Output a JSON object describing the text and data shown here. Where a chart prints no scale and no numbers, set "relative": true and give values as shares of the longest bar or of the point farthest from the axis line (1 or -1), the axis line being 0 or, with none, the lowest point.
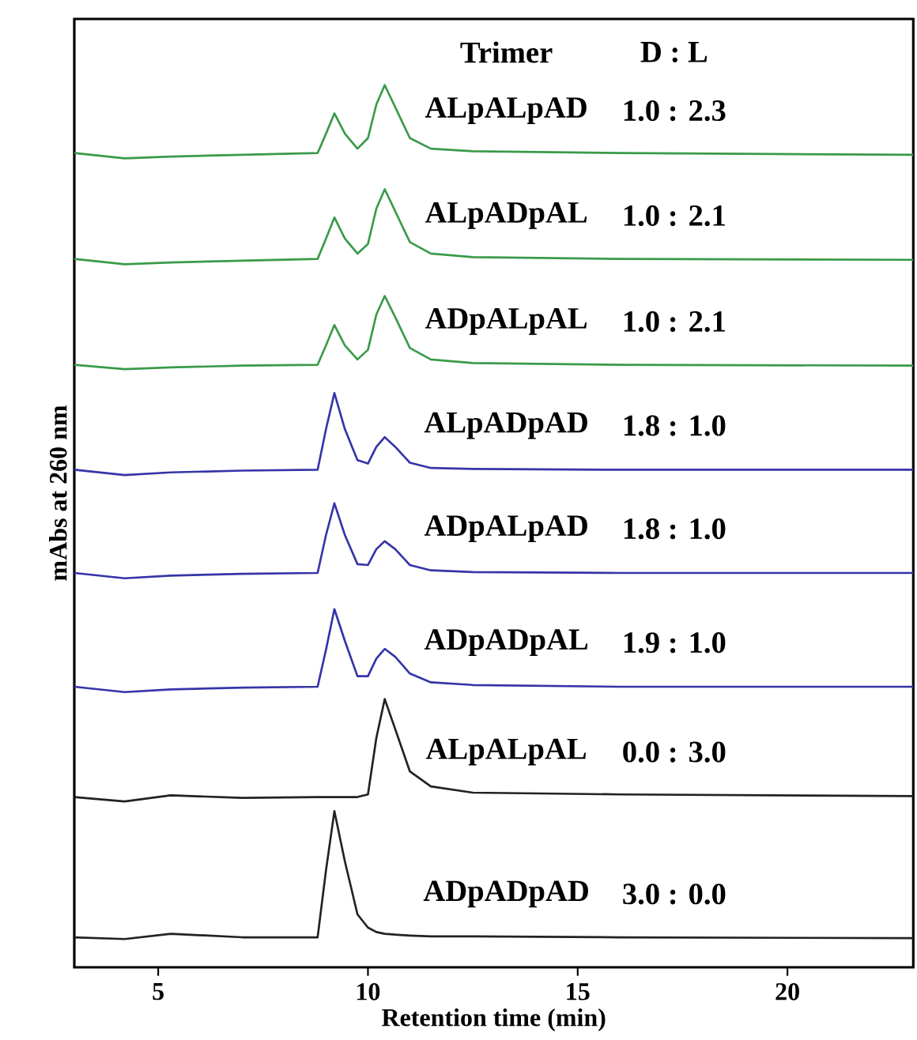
{
  "chart_data": {
    "type": "line",
    "xlabel": "Retention time (min)",
    "ylabel": "mAbs at 260 nm",
    "relative": true,
    "xlim": [
      3,
      23
    ],
    "xticks": [
      5,
      10,
      15,
      20
    ],
    "grid": false,
    "marker": "none",
    "line_style": "solid",
    "x": [
      3,
      4.2,
      5.3,
      7,
      8.8,
      9.0,
      9.2,
      9.45,
      9.75,
      10.0,
      10.2,
      10.4,
      10.65,
      11.0,
      11.5,
      12.5,
      16,
      23
    ],
    "series": [
      {
        "color": "#3a9a4a",
        "values": [
          0.923,
          0.917,
          0.919,
          0.921,
          0.923,
          0.945,
          0.968,
          0.945,
          0.928,
          0.94,
          0.978,
          1.0,
          0.975,
          0.94,
          0.928,
          0.925,
          0.923,
          0.921
        ]
      },
      {
        "color": "#3a9a4a",
        "values": [
          0.803,
          0.797,
          0.799,
          0.801,
          0.803,
          0.826,
          0.85,
          0.826,
          0.809,
          0.82,
          0.86,
          0.882,
          0.857,
          0.822,
          0.809,
          0.805,
          0.803,
          0.802
        ]
      },
      {
        "color": "#3a9a4a",
        "values": [
          0.683,
          0.678,
          0.68,
          0.682,
          0.683,
          0.705,
          0.728,
          0.705,
          0.689,
          0.7,
          0.74,
          0.761,
          0.737,
          0.702,
          0.689,
          0.685,
          0.683,
          0.682
        ]
      },
      {
        "color": "#3535a8",
        "values": [
          0.564,
          0.558,
          0.561,
          0.563,
          0.564,
          0.61,
          0.651,
          0.61,
          0.575,
          0.571,
          0.59,
          0.601,
          0.59,
          0.572,
          0.566,
          0.565,
          0.564,
          0.564
        ]
      },
      {
        "color": "#3535a8",
        "values": [
          0.447,
          0.441,
          0.444,
          0.446,
          0.447,
          0.49,
          0.526,
          0.49,
          0.457,
          0.456,
          0.474,
          0.483,
          0.474,
          0.456,
          0.45,
          0.448,
          0.447,
          0.447
        ]
      },
      {
        "color": "#3535a8",
        "values": [
          0.318,
          0.312,
          0.315,
          0.317,
          0.318,
          0.36,
          0.406,
          0.37,
          0.33,
          0.33,
          0.35,
          0.361,
          0.352,
          0.333,
          0.323,
          0.32,
          0.318,
          0.318
        ]
      },
      {
        "color": "#222222",
        "values": [
          0.193,
          0.188,
          0.195,
          0.192,
          0.193,
          0.193,
          0.193,
          0.193,
          0.193,
          0.196,
          0.26,
          0.304,
          0.27,
          0.222,
          0.205,
          0.198,
          0.196,
          0.194
        ]
      },
      {
        "color": "#222222",
        "values": [
          0.034,
          0.032,
          0.038,
          0.034,
          0.034,
          0.11,
          0.177,
          0.12,
          0.06,
          0.045,
          0.04,
          0.038,
          0.037,
          0.036,
          0.035,
          0.035,
          0.034,
          0.033
        ]
      }
    ],
    "annotations": [
      "Trimer",
      "D : L",
      "ALpALpAD",
      "1.0 : 2.3",
      "ALpADpAL",
      "1.0 : 2.1",
      "ADpALpAL",
      "1.0 : 2.1",
      "ALpADpAD",
      "1.8 : 1.0",
      "ADpALpAD",
      "1.8 : 1.0",
      "ADpADpAL",
      "1.9 : 1.0",
      "ALpALpAL",
      "0.0 : 3.0",
      "ADpADpAD",
      "3.0 : 0.0"
    ]
  }
}
